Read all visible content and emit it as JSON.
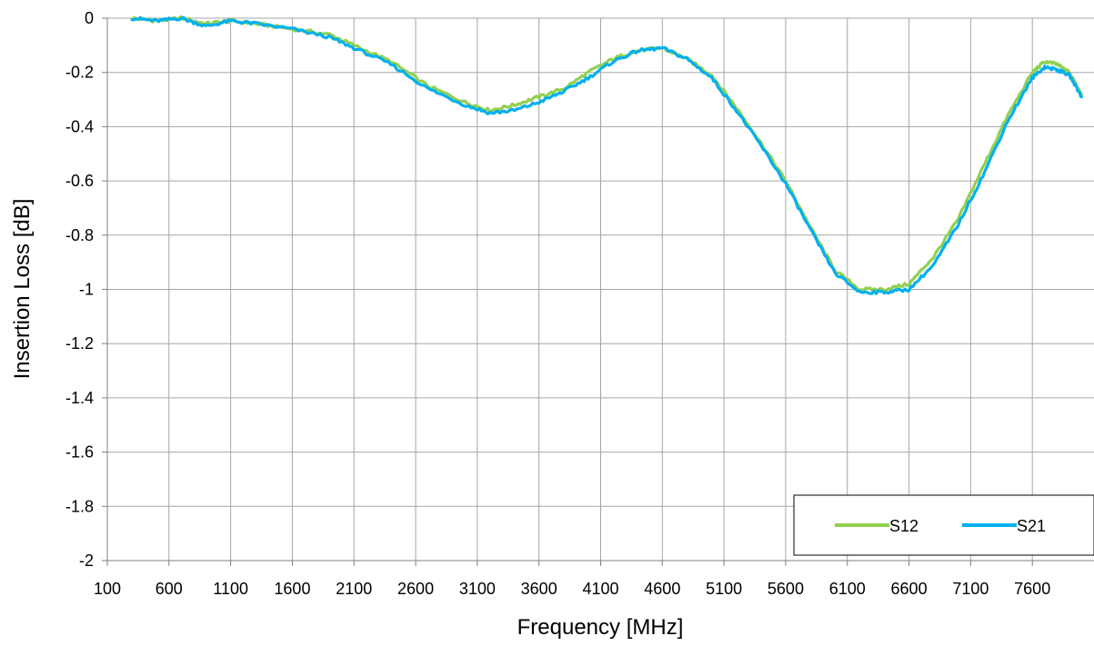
{
  "chart_data": {
    "type": "line",
    "xlabel": "Frequency [MHz]",
    "ylabel": "Insertion Loss [dB]",
    "xlim": [
      100,
      8100
    ],
    "ylim": [
      -2,
      0
    ],
    "x_ticks": [
      100,
      600,
      1100,
      1600,
      2100,
      2600,
      3100,
      3600,
      4100,
      4600,
      5100,
      5600,
      6100,
      6600,
      7100,
      7600
    ],
    "y_ticks": [
      0,
      -0.2,
      -0.4,
      -0.6,
      -0.8,
      -1,
      -1.2,
      -1.4,
      -1.6,
      -1.8,
      -2
    ],
    "grid": true,
    "legend_position": "bottom-right",
    "series": [
      {
        "name": "S12",
        "color": "#92d050",
        "x": [
          300,
          500,
          700,
          900,
          1100,
          1300,
          1600,
          1900,
          2100,
          2400,
          2700,
          3000,
          3200,
          3400,
          3600,
          3800,
          4000,
          4200,
          4400,
          4600,
          4800,
          5000,
          5200,
          5400,
          5600,
          5800,
          6000,
          6200,
          6400,
          6600,
          6800,
          7000,
          7200,
          7400,
          7600,
          7700,
          7800,
          7900,
          8000
        ],
        "y": [
          0,
          -0.01,
          0.0,
          -0.02,
          -0.01,
          -0.02,
          -0.04,
          -0.06,
          -0.1,
          -0.16,
          -0.25,
          -0.31,
          -0.34,
          -0.32,
          -0.29,
          -0.26,
          -0.2,
          -0.15,
          -0.12,
          -0.11,
          -0.15,
          -0.21,
          -0.33,
          -0.46,
          -0.6,
          -0.77,
          -0.93,
          -1.0,
          -1.0,
          -0.98,
          -0.88,
          -0.74,
          -0.55,
          -0.36,
          -0.2,
          -0.16,
          -0.17,
          -0.2,
          -0.28
        ]
      },
      {
        "name": "S21",
        "color": "#00b0f0",
        "x": [
          300,
          500,
          700,
          900,
          1100,
          1300,
          1600,
          1900,
          2100,
          2400,
          2700,
          3000,
          3200,
          3400,
          3600,
          3800,
          4000,
          4200,
          4400,
          4600,
          4800,
          5000,
          5200,
          5400,
          5600,
          5800,
          6000,
          6200,
          6400,
          6600,
          6800,
          7000,
          7200,
          7400,
          7600,
          7700,
          7800,
          7900,
          8000
        ],
        "y": [
          0,
          -0.01,
          0.0,
          -0.03,
          -0.01,
          -0.02,
          -0.04,
          -0.07,
          -0.11,
          -0.17,
          -0.26,
          -0.32,
          -0.35,
          -0.34,
          -0.31,
          -0.27,
          -0.22,
          -0.16,
          -0.12,
          -0.11,
          -0.15,
          -0.22,
          -0.34,
          -0.47,
          -0.61,
          -0.78,
          -0.94,
          -1.01,
          -1.01,
          -1.0,
          -0.91,
          -0.76,
          -0.58,
          -0.38,
          -0.22,
          -0.18,
          -0.19,
          -0.21,
          -0.29
        ]
      }
    ]
  }
}
